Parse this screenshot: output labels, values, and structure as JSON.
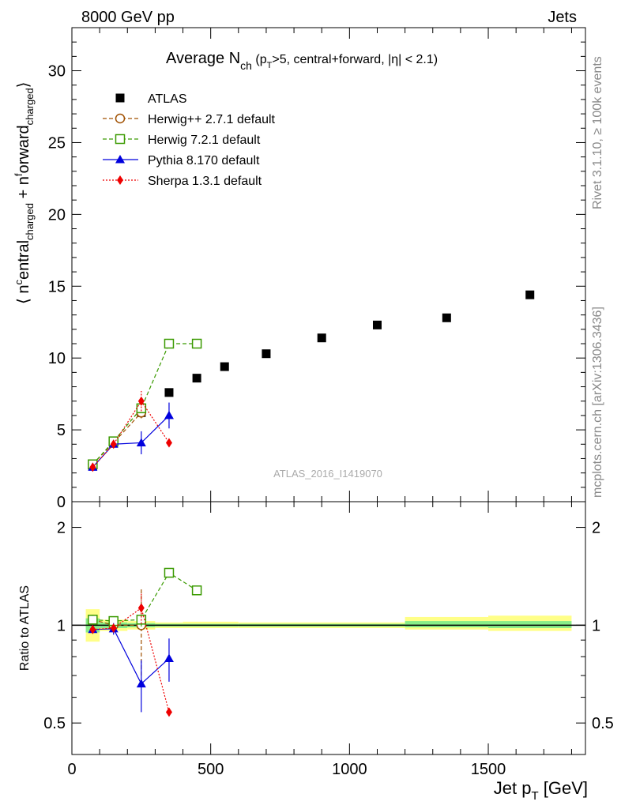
{
  "header": {
    "left": "8000 GeV pp",
    "right": "Jets"
  },
  "side": {
    "rivet": "Rivet 3.1.10, ≥ 100k events",
    "mcplots": "mcplots.cern.ch [arXiv:1306.3436]"
  },
  "chart_data": [
    {
      "type": "scatter",
      "title_main": "Average N",
      "title_sub": "ch",
      "title_rest": " (p",
      "title_sub2": "T",
      "title_end": ">5, central+forward, |η| < 2.1)",
      "ylabel_parts": [
        "⟨ n",
        "c",
        "entral",
        "charged",
        " + n",
        "f",
        "orward",
        "charged",
        "⟩"
      ],
      "watermark": "ATLAS_2016_I1419070",
      "xlim": [
        0,
        1850
      ],
      "ylim": [
        0,
        33
      ],
      "yticks": [
        0,
        5,
        10,
        15,
        20,
        25,
        30
      ],
      "legend_position": "top-left",
      "series": [
        {
          "name": "ATLAS",
          "color": "#000000",
          "marker": "square-filled",
          "x": [
            75,
            150,
            250,
            350,
            450,
            550,
            700,
            900,
            1100,
            1350,
            1650
          ],
          "y": [
            2.5,
            4.1,
            6.2,
            7.6,
            8.6,
            9.4,
            10.3,
            11.4,
            12.3,
            12.8,
            14.4
          ]
        },
        {
          "name": "Herwig++ 2.7.1 default",
          "color": "#a05000",
          "marker": "circle-open",
          "line": "dashed",
          "x": [
            75,
            150,
            250
          ],
          "y": [
            2.6,
            4.1,
            6.2
          ],
          "yerr": [
            0.05,
            0.1,
            0.4
          ]
        },
        {
          "name": "Herwig 7.2.1 default",
          "color": "#3a9a00",
          "marker": "square-open",
          "line": "dashed",
          "x": [
            75,
            150,
            250,
            350,
            450
          ],
          "y": [
            2.6,
            4.2,
            6.5,
            11.0,
            11.0
          ],
          "yerr": [
            0.05,
            0.1,
            0.3,
            0.1,
            0.1
          ]
        },
        {
          "name": "Pythia 8.170 default",
          "color": "#0000dd",
          "marker": "triangle-filled",
          "line": "solid",
          "x": [
            75,
            150,
            250,
            350
          ],
          "y": [
            2.4,
            4.0,
            4.1,
            6.0
          ],
          "yerr": [
            0.05,
            0.15,
            0.8,
            0.9
          ]
        },
        {
          "name": "Sherpa 1.3.1 default",
          "color": "#ee0000",
          "marker": "diamond-filled",
          "line": "dotted",
          "x": [
            75,
            150,
            250,
            350
          ],
          "y": [
            2.4,
            4.0,
            7.0,
            4.1
          ],
          "yerr": [
            0.05,
            0.1,
            0.7,
            0.1
          ]
        }
      ]
    },
    {
      "type": "scatter",
      "ylabel": "Ratio to ATLAS",
      "xlabel_main": "Jet p",
      "xlabel_sub": "T",
      "xlabel_end": " [GeV]",
      "xlim": [
        0,
        1850
      ],
      "ylim": [
        0.4,
        2.4
      ],
      "yscale": "log",
      "yticks": [
        0.5,
        1,
        2
      ],
      "xticks": [
        0,
        500,
        1000,
        1500
      ],
      "reference_line": 1,
      "bands": [
        {
          "x0": 50,
          "x1": 100,
          "inner": [
            0.95,
            1.05
          ],
          "outer": [
            0.89,
            1.12
          ]
        },
        {
          "x0": 100,
          "x1": 200,
          "inner": [
            0.98,
            1.02
          ],
          "outer": [
            0.96,
            1.04
          ]
        },
        {
          "x0": 200,
          "x1": 300,
          "inner": [
            0.985,
            1.015
          ],
          "outer": [
            0.97,
            1.03
          ]
        },
        {
          "x0": 300,
          "x1": 400,
          "inner": [
            0.99,
            1.01
          ],
          "outer": [
            0.98,
            1.02
          ]
        },
        {
          "x0": 400,
          "x1": 600,
          "inner": [
            0.99,
            1.01
          ],
          "outer": [
            0.98,
            1.025
          ]
        },
        {
          "x0": 600,
          "x1": 1200,
          "inner": [
            0.99,
            1.01
          ],
          "outer": [
            0.98,
            1.02
          ]
        },
        {
          "x0": 1200,
          "x1": 1500,
          "inner": [
            0.985,
            1.03
          ],
          "outer": [
            0.97,
            1.06
          ]
        },
        {
          "x0": 1500,
          "x1": 1800,
          "inner": [
            0.98,
            1.03
          ],
          "outer": [
            0.96,
            1.07
          ]
        }
      ],
      "series": [
        {
          "name": "Herwig++ 2.7.1 default",
          "x": [
            75,
            150,
            250
          ],
          "y": [
            1.04,
            1.0,
            1.0
          ],
          "yerr": [
            0.02,
            0.03,
            0.3
          ]
        },
        {
          "name": "Herwig 7.2.1 default",
          "x": [
            75,
            150,
            250,
            350,
            450
          ],
          "y": [
            1.04,
            1.03,
            1.04,
            1.45,
            1.28
          ],
          "yerr": [
            0.02,
            0.03,
            0.05,
            0.02,
            0.02
          ]
        },
        {
          "name": "Pythia 8.170 default",
          "x": [
            75,
            150,
            250,
            350
          ],
          "y": [
            0.97,
            0.975,
            0.66,
            0.79
          ],
          "yerr": [
            0.02,
            0.04,
            0.12,
            0.12
          ]
        },
        {
          "name": "Sherpa 1.3.1 default",
          "x": [
            75,
            150,
            250,
            350
          ],
          "y": [
            0.97,
            0.98,
            1.13,
            0.54
          ],
          "yerr": [
            0.02,
            0.03,
            0.12,
            0.01
          ]
        }
      ]
    }
  ]
}
